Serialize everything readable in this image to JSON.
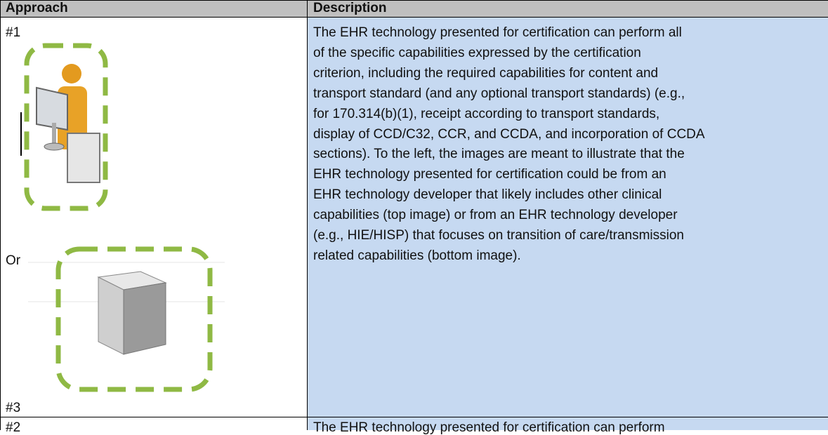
{
  "table": {
    "headers": [
      "Approach",
      "Description"
    ],
    "rows": [
      {
        "approach_labels": [
          "#1",
          "Or",
          "#3"
        ],
        "description_lines": [
          "The EHR technology presented for certification can perform all",
          "of the specific capabilities expressed by the certification",
          "criterion, including the required capabilities for content and",
          "transport standard (and any optional transport standards) (e.g.,",
          "for 170.314(b)(1), receipt according to transport standards,",
          "display of CCD/C32, CCR, and CCDA, and incorporation of CCDA",
          "sections). To the left, the images are meant to illustrate that the",
          "EHR technology presented for certification could be from an",
          "EHR technology developer that likely includes other clinical",
          "capabilities (top image) or from an EHR technology developer",
          "(e.g., HIE/HISP) that focuses on transition of care/transmission",
          "related capabilities (bottom image)."
        ]
      },
      {
        "approach_labels": [
          "#2"
        ],
        "description_lines": [
          "The EHR technology presented for certification can perform"
        ]
      }
    ]
  }
}
